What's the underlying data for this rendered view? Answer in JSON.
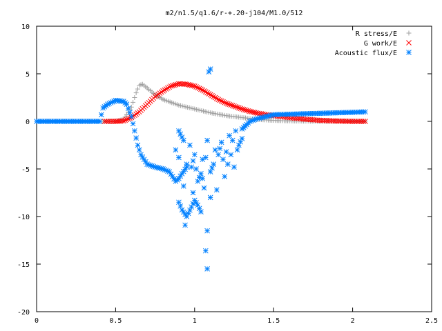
{
  "chart_data": {
    "type": "scatter",
    "title": "m2/n1.5/q1.6/r-+.20-j104/M1.0/512",
    "xlabel": "",
    "ylabel": "",
    "xlim": [
      0,
      2.5
    ],
    "ylim": [
      -20,
      10
    ],
    "xticks": [
      "0",
      "0.5",
      "1",
      "1.5",
      "2",
      "2.5"
    ],
    "yticks": [
      "10",
      "5",
      "0",
      "-5",
      "-10",
      "-15",
      "-20"
    ],
    "legend_position": "top-right",
    "grid": false,
    "series": [
      {
        "name": "R stress/E",
        "marker": "+",
        "color": "#a0a0a0",
        "points": [
          [
            0.0,
            0.0
          ],
          [
            0.1,
            0.0
          ],
          [
            0.2,
            0.0
          ],
          [
            0.3,
            0.0
          ],
          [
            0.4,
            0.0
          ],
          [
            0.45,
            0.0
          ],
          [
            0.5,
            0.02
          ],
          [
            0.55,
            0.2
          ],
          [
            0.6,
            1.5
          ],
          [
            0.63,
            3.0
          ],
          [
            0.65,
            3.8
          ],
          [
            0.67,
            3.9
          ],
          [
            0.7,
            3.5
          ],
          [
            0.75,
            2.8
          ],
          [
            0.8,
            2.3
          ],
          [
            0.9,
            1.7
          ],
          [
            1.0,
            1.3
          ],
          [
            1.1,
            0.9
          ],
          [
            1.2,
            0.6
          ],
          [
            1.3,
            0.4
          ],
          [
            1.4,
            0.2
          ],
          [
            1.5,
            0.1
          ],
          [
            1.6,
            0.05
          ],
          [
            1.7,
            0.02
          ],
          [
            1.8,
            0.0
          ],
          [
            1.9,
            0.0
          ],
          [
            2.0,
            0.0
          ],
          [
            2.08,
            0.0
          ]
        ]
      },
      {
        "name": "G work/E",
        "marker": "x",
        "color": "#ff0000",
        "points": [
          [
            0.43,
            0.0
          ],
          [
            0.5,
            0.0
          ],
          [
            0.55,
            0.05
          ],
          [
            0.6,
            0.4
          ],
          [
            0.65,
            1.0
          ],
          [
            0.7,
            1.8
          ],
          [
            0.75,
            2.6
          ],
          [
            0.8,
            3.2
          ],
          [
            0.85,
            3.7
          ],
          [
            0.9,
            3.95
          ],
          [
            0.95,
            3.9
          ],
          [
            1.0,
            3.7
          ],
          [
            1.05,
            3.3
          ],
          [
            1.1,
            2.8
          ],
          [
            1.15,
            2.3
          ],
          [
            1.2,
            1.9
          ],
          [
            1.25,
            1.6
          ],
          [
            1.3,
            1.3
          ],
          [
            1.35,
            1.05
          ],
          [
            1.4,
            0.85
          ],
          [
            1.5,
            0.6
          ],
          [
            1.6,
            0.4
          ],
          [
            1.7,
            0.22
          ],
          [
            1.8,
            0.1
          ],
          [
            1.9,
            0.04
          ],
          [
            2.0,
            0.0
          ],
          [
            2.08,
            0.0
          ]
        ]
      },
      {
        "name": "Acoustic flux/E",
        "marker": "*",
        "color": "#0080ff",
        "points": [
          [
            0.0,
            0.0
          ],
          [
            0.1,
            0.0
          ],
          [
            0.2,
            0.0
          ],
          [
            0.3,
            0.0
          ],
          [
            0.4,
            0.0
          ],
          [
            0.42,
            1.4
          ],
          [
            0.45,
            1.8
          ],
          [
            0.5,
            2.2
          ],
          [
            0.55,
            2.1
          ],
          [
            0.57,
            1.8
          ],
          [
            0.6,
            0.5
          ],
          [
            0.62,
            -1.0
          ],
          [
            0.64,
            -2.5
          ],
          [
            0.66,
            -3.5
          ],
          [
            0.68,
            -4.0
          ],
          [
            0.7,
            -4.5
          ],
          [
            0.75,
            -4.8
          ],
          [
            0.8,
            -5.0
          ],
          [
            0.84,
            -5.3
          ],
          [
            0.86,
            -5.8
          ],
          [
            0.88,
            -6.3
          ],
          [
            0.9,
            -6.0
          ],
          [
            0.92,
            -5.5
          ],
          [
            0.95,
            -4.8
          ],
          [
            0.88,
            -3.0
          ],
          [
            0.9,
            -1.0
          ],
          [
            0.93,
            -2.0
          ],
          [
            0.9,
            -3.8
          ],
          [
            0.93,
            -6.8
          ],
          [
            0.95,
            -4.5
          ],
          [
            0.97,
            -2.5
          ],
          [
            0.98,
            -4.8
          ],
          [
            1.0,
            -3.5
          ],
          [
            1.01,
            -5.0
          ],
          [
            1.02,
            -6.3
          ],
          [
            1.04,
            -5.5
          ],
          [
            1.05,
            -4.0
          ],
          [
            1.06,
            -7.0
          ],
          [
            1.07,
            -3.8
          ],
          [
            1.08,
            -2.0
          ],
          [
            1.1,
            -5.3
          ],
          [
            1.12,
            -4.5
          ],
          [
            1.13,
            -3.0
          ],
          [
            1.14,
            -7.2
          ],
          [
            1.15,
            -3.5
          ],
          [
            1.17,
            -2.2
          ],
          [
            1.18,
            -4.0
          ],
          [
            1.19,
            -5.8
          ],
          [
            1.2,
            -3.2
          ],
          [
            1.21,
            -4.5
          ],
          [
            1.22,
            -1.5
          ],
          [
            1.23,
            -3.5
          ],
          [
            1.24,
            -2.0
          ],
          [
            1.25,
            -4.8
          ],
          [
            1.26,
            -1.0
          ],
          [
            1.27,
            -3.0
          ],
          [
            1.28,
            -2.5
          ],
          [
            1.3,
            -1.8
          ],
          [
            1.3,
            -0.8
          ],
          [
            1.32,
            -0.5
          ],
          [
            1.35,
            0.0
          ],
          [
            1.4,
            0.3
          ],
          [
            1.45,
            0.5
          ],
          [
            1.5,
            0.7
          ],
          [
            1.6,
            0.75
          ],
          [
            1.7,
            0.8
          ],
          [
            1.8,
            0.85
          ],
          [
            1.9,
            0.9
          ],
          [
            2.0,
            0.95
          ],
          [
            2.08,
            1.0
          ],
          [
            0.9,
            -8.5
          ],
          [
            0.92,
            -9.3
          ],
          [
            0.95,
            -10.0
          ],
          [
            0.98,
            -9.0
          ],
          [
            1.0,
            -8.3
          ],
          [
            1.02,
            -8.8
          ],
          [
            1.04,
            -9.5
          ],
          [
            0.94,
            -10.9
          ],
          [
            1.08,
            -11.5
          ],
          [
            1.07,
            -13.6
          ],
          [
            1.08,
            -15.5
          ],
          [
            1.09,
            5.2
          ],
          [
            1.1,
            5.5
          ],
          [
            1.1,
            -8.0
          ],
          [
            1.05,
            -6.0
          ],
          [
            0.99,
            -7.5
          ]
        ]
      }
    ]
  }
}
